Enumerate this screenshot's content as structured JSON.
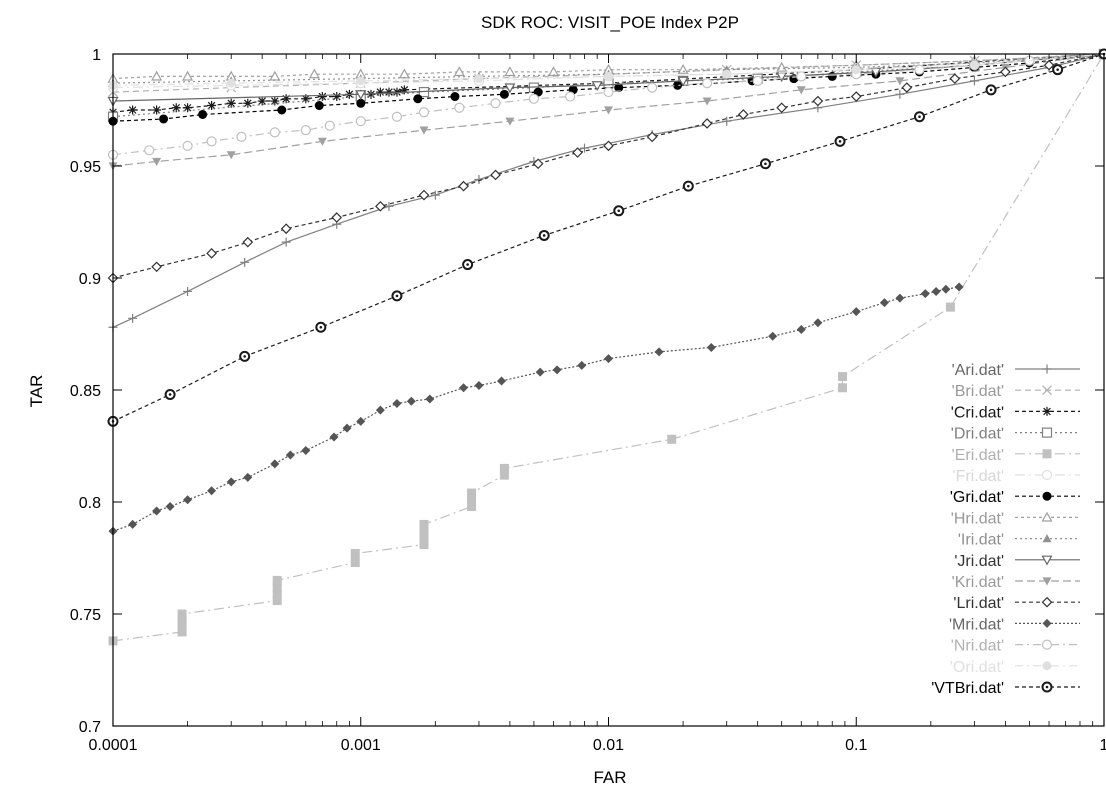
{
  "chart_data": {
    "type": "line",
    "title": "SDK ROC: VISIT_POE Index P2P",
    "xlabel": "FAR",
    "ylabel": "TAR",
    "xscale": "log",
    "xlim": [
      0.0001,
      1
    ],
    "ylim": [
      0.7,
      1
    ],
    "xticks": [
      {
        "v": 0.0001,
        "label": "0.0001"
      },
      {
        "v": 0.001,
        "label": "0.001"
      },
      {
        "v": 0.01,
        "label": "0.01"
      },
      {
        "v": 0.1,
        "label": "0.1"
      },
      {
        "v": 1,
        "label": "1"
      }
    ],
    "yticks": [
      {
        "v": 0.7,
        "label": "0.7"
      },
      {
        "v": 0.75,
        "label": "0.75"
      },
      {
        "v": 0.8,
        "label": "0.8"
      },
      {
        "v": 0.85,
        "label": "0.85"
      },
      {
        "v": 0.9,
        "label": "0.9"
      },
      {
        "v": 0.95,
        "label": "0.95"
      },
      {
        "v": 1,
        "label": "1"
      }
    ],
    "grid": false,
    "legend_position": "bottom-right",
    "series": [
      {
        "name": "'Ari.dat'",
        "color": "#808080",
        "text_color": "#666666",
        "dash": "",
        "marker": "plus",
        "x": [
          0.0001,
          0.00012,
          0.0002,
          0.00034,
          0.0005,
          0.0008,
          0.0013,
          0.002,
          0.003,
          0.005,
          0.008,
          0.015,
          0.03,
          0.07,
          0.15,
          0.3,
          0.6,
          1
        ],
        "y": [
          0.878,
          0.882,
          0.894,
          0.907,
          0.916,
          0.924,
          0.932,
          0.937,
          0.944,
          0.952,
          0.958,
          0.964,
          0.97,
          0.976,
          0.982,
          0.988,
          0.994,
          1.0
        ]
      },
      {
        "name": "'Bri.dat'",
        "color": "#b0b0b0",
        "text_color": "#999999",
        "dash": "6,4",
        "marker": "cross",
        "x": [
          0.0001,
          0.0003,
          0.001,
          0.003,
          0.01,
          0.03,
          0.1,
          0.3,
          1
        ],
        "y": [
          0.983,
          0.985,
          0.987,
          0.989,
          0.991,
          0.993,
          0.995,
          0.997,
          1.0
        ]
      },
      {
        "name": "'Cri.dat'",
        "color": "#1a1a1a",
        "text_color": "#1a1a1a",
        "dash": "4,3",
        "marker": "star",
        "x": [
          0.0001,
          0.00012,
          0.00015,
          0.00018,
          0.0002,
          0.00025,
          0.0003,
          0.00035,
          0.0004,
          0.00045,
          0.0005,
          0.0006,
          0.0007,
          0.0008,
          0.0009,
          0.001,
          0.0011,
          0.0012,
          0.0013,
          0.0014,
          0.0015,
          0.01,
          0.1,
          1
        ],
        "y": [
          0.974,
          0.975,
          0.975,
          0.976,
          0.976,
          0.977,
          0.978,
          0.978,
          0.979,
          0.979,
          0.98,
          0.98,
          0.981,
          0.981,
          0.982,
          0.982,
          0.982,
          0.983,
          0.983,
          0.983,
          0.984,
          0.987,
          0.993,
          1.0
        ]
      },
      {
        "name": "'Dri.dat'",
        "color": "#808080",
        "text_color": "#808080",
        "dash": "2,3",
        "marker": "square",
        "x": [
          0.0001,
          0.001,
          0.0018,
          0.005,
          0.01,
          0.02,
          0.04,
          0.1,
          0.3,
          1
        ],
        "y": [
          0.972,
          0.981,
          0.983,
          0.985,
          0.987,
          0.988,
          0.989,
          0.992,
          0.995,
          1.0
        ]
      },
      {
        "name": "'Eri.dat'",
        "color": "#c0c0c0",
        "text_color": "#b0b0b0",
        "dash": "10,4,2,4",
        "marker": "fsquare",
        "x": [
          0.0001,
          0.00019,
          0.00019,
          0.00019,
          0.00019,
          0.00046,
          0.00046,
          0.00046,
          0.00046,
          0.00095,
          0.00095,
          0.0018,
          0.0018,
          0.0018,
          0.0018,
          0.0028,
          0.0028,
          0.0028,
          0.0038,
          0.0038,
          0.018,
          0.088,
          0.088,
          0.24,
          1
        ],
        "y": [
          0.738,
          0.742,
          0.745,
          0.747,
          0.75,
          0.756,
          0.759,
          0.762,
          0.765,
          0.773,
          0.777,
          0.781,
          0.784,
          0.787,
          0.79,
          0.798,
          0.801,
          0.804,
          0.812,
          0.815,
          0.828,
          0.851,
          0.856,
          0.887,
          1.0
        ]
      },
      {
        "name": "'Fri.dat'",
        "color": "#e0e0e0",
        "text_color": "#d8d8d8",
        "dash": "10,4,2,4",
        "marker": "circle",
        "x": [
          0.0001,
          0.0003,
          0.001,
          0.003,
          0.01,
          0.03,
          0.1,
          0.3,
          1
        ],
        "y": [
          0.985,
          0.986,
          0.987,
          0.988,
          0.99,
          0.991,
          0.993,
          0.996,
          1.0
        ]
      },
      {
        "name": "'Gri.dat'",
        "color": "#000000",
        "text_color": "#000000",
        "dash": "4,3",
        "marker": "fcircle",
        "x": [
          0.0001,
          0.00016,
          0.00023,
          0.00048,
          0.00068,
          0.001,
          0.0017,
          0.0024,
          0.0038,
          0.0052,
          0.0072,
          0.011,
          0.019,
          0.038,
          0.056,
          0.08,
          0.12,
          0.18,
          0.3,
          0.5,
          1
        ],
        "y": [
          0.97,
          0.971,
          0.973,
          0.975,
          0.977,
          0.978,
          0.98,
          0.981,
          0.982,
          0.983,
          0.984,
          0.985,
          0.986,
          0.988,
          0.989,
          0.99,
          0.991,
          0.992,
          0.994,
          0.996,
          1.0
        ]
      },
      {
        "name": "'Hri.dat'",
        "color": "#a0a0a0",
        "text_color": "#999999",
        "dash": "3,3",
        "marker": "triangle",
        "x": [
          0.0001,
          0.00015,
          0.0002,
          0.0003,
          0.00045,
          0.00065,
          0.001,
          0.0015,
          0.0025,
          0.004,
          0.006,
          0.01,
          0.02,
          0.05,
          0.1,
          0.3,
          1
        ],
        "y": [
          0.989,
          0.99,
          0.99,
          0.99,
          0.99,
          0.991,
          0.991,
          0.991,
          0.992,
          0.992,
          0.992,
          0.993,
          0.993,
          0.994,
          0.995,
          0.997,
          1.0
        ]
      },
      {
        "name": "'Iri.dat'",
        "color": "#909090",
        "text_color": "#909090",
        "dash": "2,3",
        "marker": "ftriangle",
        "x": [
          0.0001,
          0.0003,
          0.001,
          0.003,
          0.01,
          0.03,
          0.1,
          0.3,
          1
        ],
        "y": [
          0.987,
          0.988,
          0.989,
          0.99,
          0.991,
          0.993,
          0.994,
          0.996,
          1.0
        ]
      },
      {
        "name": "'Jri.dat'",
        "color": "#666666",
        "text_color": "#333333",
        "dash": "",
        "marker": "dtriangle",
        "x": [
          0.0001,
          0.001,
          0.004,
          0.009,
          0.02,
          0.05,
          0.12,
          0.3,
          1
        ],
        "y": [
          0.979,
          0.982,
          0.985,
          0.986,
          0.988,
          0.99,
          0.992,
          0.995,
          1.0
        ]
      },
      {
        "name": "'Kri.dat'",
        "color": "#a0a0a0",
        "text_color": "#999999",
        "dash": "8,4",
        "marker": "fdtriangle",
        "x": [
          0.0001,
          0.00015,
          0.0003,
          0.0007,
          0.0018,
          0.004,
          0.01,
          0.025,
          0.06,
          0.15,
          0.4,
          1
        ],
        "y": [
          0.95,
          0.952,
          0.955,
          0.961,
          0.966,
          0.97,
          0.975,
          0.979,
          0.984,
          0.988,
          0.994,
          1.0
        ]
      },
      {
        "name": "'Lri.dat'",
        "color": "#333333",
        "text_color": "#333333",
        "dash": "4,3",
        "marker": "diamond",
        "x": [
          0.0001,
          0.00015,
          0.00025,
          0.00035,
          0.0005,
          0.0008,
          0.0012,
          0.0018,
          0.0026,
          0.0035,
          0.0052,
          0.0075,
          0.01,
          0.015,
          0.025,
          0.035,
          0.05,
          0.07,
          0.1,
          0.16,
          0.25,
          0.4,
          0.6,
          1
        ],
        "y": [
          0.9,
          0.905,
          0.911,
          0.916,
          0.922,
          0.927,
          0.932,
          0.937,
          0.941,
          0.946,
          0.951,
          0.956,
          0.959,
          0.963,
          0.969,
          0.973,
          0.976,
          0.979,
          0.981,
          0.985,
          0.989,
          0.992,
          0.995,
          1.0
        ]
      },
      {
        "name": "'Mri.dat'",
        "color": "#555555",
        "text_color": "#666666",
        "dash": "2,2",
        "marker": "fdiamond",
        "x": [
          0.0001,
          0.00012,
          0.00015,
          0.00017,
          0.0002,
          0.00025,
          0.0003,
          0.00035,
          0.00045,
          0.00052,
          0.0006,
          0.00078,
          0.00088,
          0.001,
          0.0012,
          0.0014,
          0.0016,
          0.0019,
          0.0026,
          0.003,
          0.0037,
          0.0053,
          0.0062,
          0.0078,
          0.01,
          0.016,
          0.026,
          0.046,
          0.06,
          0.07,
          0.1,
          0.13,
          0.15,
          0.19,
          0.21,
          0.23,
          0.26
        ],
        "y": [
          0.787,
          0.79,
          0.796,
          0.798,
          0.801,
          0.805,
          0.809,
          0.811,
          0.817,
          0.821,
          0.823,
          0.829,
          0.833,
          0.836,
          0.841,
          0.844,
          0.845,
          0.846,
          0.851,
          0.852,
          0.854,
          0.858,
          0.859,
          0.861,
          0.864,
          0.867,
          0.869,
          0.874,
          0.877,
          0.88,
          0.885,
          0.889,
          0.891,
          0.893,
          0.894,
          0.895,
          0.896
        ]
      },
      {
        "name": "'Nri.dat'",
        "color": "#c0c0c0",
        "text_color": "#b0b0b0",
        "dash": "8,4,2,4",
        "marker": "circle",
        "x": [
          0.0001,
          0.00014,
          0.0002,
          0.00025,
          0.00033,
          0.00045,
          0.0006,
          0.00075,
          0.001,
          0.0014,
          0.0018,
          0.0025,
          0.0035,
          0.005,
          0.007,
          0.01,
          0.015,
          0.025,
          0.04,
          0.06,
          0.1,
          0.18,
          0.3,
          0.5,
          1
        ],
        "y": [
          0.955,
          0.957,
          0.959,
          0.961,
          0.963,
          0.965,
          0.966,
          0.968,
          0.97,
          0.972,
          0.974,
          0.976,
          0.978,
          0.98,
          0.981,
          0.983,
          0.985,
          0.987,
          0.988,
          0.99,
          0.991,
          0.993,
          0.995,
          0.997,
          1.0
        ]
      },
      {
        "name": "'Ori.dat'",
        "color": "#e0e0e0",
        "text_color": "#e0e0e0",
        "dash": "8,4,2,4",
        "marker": "fcircle",
        "x": [
          0.0001,
          0.0003,
          0.001,
          0.003,
          0.01,
          0.03,
          0.1,
          0.3,
          1
        ],
        "y": [
          0.986,
          0.987,
          0.988,
          0.989,
          0.99,
          0.991,
          0.993,
          0.995,
          1.0
        ]
      },
      {
        "name": "'VTBri.dat'",
        "color": "#1a1a1a",
        "text_color": "#000000",
        "dash": "4,3",
        "marker": "bcircle",
        "x": [
          0.0001,
          0.00017,
          0.00034,
          0.00069,
          0.0014,
          0.0027,
          0.0055,
          0.011,
          0.021,
          0.043,
          0.086,
          0.18,
          0.35,
          0.65,
          1
        ],
        "y": [
          0.836,
          0.848,
          0.865,
          0.878,
          0.892,
          0.906,
          0.919,
          0.93,
          0.941,
          0.951,
          0.961,
          0.972,
          0.984,
          0.993,
          1.0
        ]
      }
    ]
  }
}
